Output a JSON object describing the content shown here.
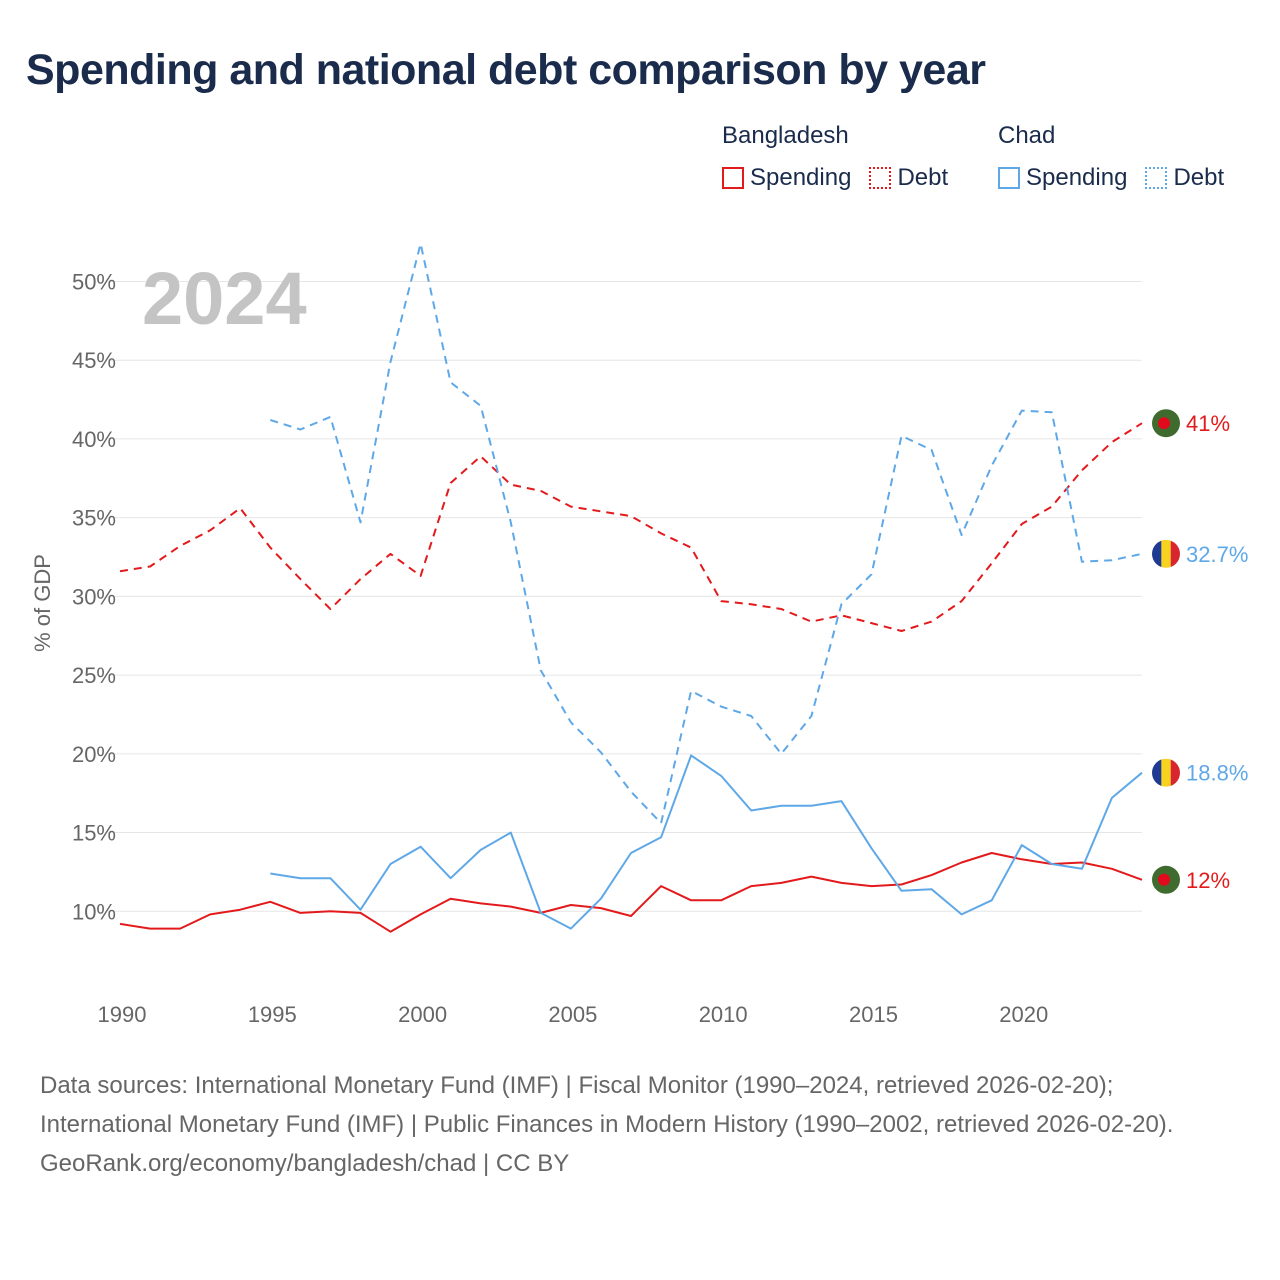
{
  "title": "Spending and national debt comparison by year",
  "legend": {
    "groups": [
      {
        "country": "Bangladesh",
        "color": "#e31a1c",
        "items": [
          {
            "label": "Spending",
            "style": "solid"
          },
          {
            "label": "Debt",
            "style": "dotted"
          }
        ]
      },
      {
        "country": "Chad",
        "color": "#5fa8e8",
        "items": [
          {
            "label": "Spending",
            "style": "solid"
          },
          {
            "label": "Debt",
            "style": "dotted"
          }
        ]
      }
    ]
  },
  "chart_data": {
    "type": "line",
    "year_label": "2024",
    "ylabel": "% of GDP",
    "xlim": [
      1990,
      2024
    ],
    "ylim": [
      5,
      52
    ],
    "x_ticks": [
      "1990",
      "1995",
      "2000",
      "2005",
      "2010",
      "2015",
      "2020"
    ],
    "x_tick_values": [
      1990,
      1995,
      2000,
      2005,
      2010,
      2015,
      2020
    ],
    "y_ticks": [
      "10%",
      "15%",
      "20%",
      "25%",
      "30%",
      "35%",
      "40%",
      "45%",
      "50%"
    ],
    "y_tick_values": [
      10,
      15,
      20,
      25,
      30,
      35,
      40,
      45,
      50
    ],
    "series": [
      {
        "name": "Bangladesh Debt",
        "country": "Bangladesh",
        "kind": "debt",
        "color": "#e31a1c",
        "end_label": "41%",
        "x": [
          1990,
          1991,
          1992,
          1993,
          1994,
          1995,
          1996,
          1997,
          1998,
          1999,
          2000,
          2001,
          2002,
          2003,
          2004,
          2005,
          2006,
          2007,
          2008,
          2009,
          2010,
          2011,
          2012,
          2013,
          2014,
          2015,
          2016,
          2017,
          2018,
          2019,
          2020,
          2021,
          2022,
          2023,
          2024
        ],
        "values": [
          31.6,
          31.9,
          33.2,
          34.2,
          35.6,
          33.1,
          31.1,
          29.2,
          31.1,
          32.7,
          31.3,
          37.2,
          38.9,
          37.1,
          36.7,
          35.7,
          35.4,
          35.1,
          34.0,
          33.1,
          29.7,
          29.5,
          29.2,
          28.4,
          28.8,
          28.3,
          27.8,
          28.4,
          29.7,
          32.1,
          34.6,
          35.7,
          38.0,
          39.8,
          41.0
        ]
      },
      {
        "name": "Chad Debt",
        "country": "Chad",
        "kind": "debt",
        "color": "#5fa8e8",
        "end_label": "32.7%",
        "x": [
          1995,
          1996,
          1997,
          1998,
          1999,
          2000,
          2001,
          2002,
          2003,
          2004,
          2005,
          2006,
          2007,
          2008,
          2009,
          2010,
          2011,
          2012,
          2013,
          2014,
          2015,
          2016,
          2017,
          2018,
          2019,
          2020,
          2021,
          2022,
          2023,
          2024
        ],
        "values": [
          41.2,
          40.6,
          41.4,
          34.7,
          44.9,
          52.4,
          43.6,
          42.1,
          34.7,
          25.3,
          22.0,
          20.1,
          17.6,
          15.6,
          24.0,
          23.0,
          22.4,
          20.0,
          22.4,
          29.5,
          31.4,
          40.2,
          39.3,
          33.9,
          38.3,
          41.8,
          41.7,
          32.2,
          32.3,
          32.7
        ]
      },
      {
        "name": "Bangladesh Spending",
        "country": "Bangladesh",
        "kind": "spending",
        "color": "#e31a1c",
        "end_label": "12%",
        "x": [
          1990,
          1991,
          1992,
          1993,
          1994,
          1995,
          1996,
          1997,
          1998,
          1999,
          2000,
          2001,
          2002,
          2003,
          2004,
          2005,
          2006,
          2007,
          2008,
          2009,
          2010,
          2011,
          2012,
          2013,
          2014,
          2015,
          2016,
          2017,
          2018,
          2019,
          2020,
          2021,
          2022,
          2023,
          2024
        ],
        "values": [
          9.2,
          8.9,
          8.9,
          9.8,
          10.1,
          10.6,
          9.9,
          10.0,
          9.9,
          8.7,
          9.8,
          10.8,
          10.5,
          10.3,
          9.9,
          10.4,
          10.2,
          9.7,
          11.6,
          10.7,
          10.7,
          11.6,
          11.8,
          12.2,
          11.8,
          11.6,
          11.7,
          12.3,
          13.1,
          13.7,
          13.3,
          13.0,
          13.1,
          12.7,
          12.0
        ]
      },
      {
        "name": "Chad Spending",
        "country": "Chad",
        "kind": "spending",
        "color": "#5fa8e8",
        "end_label": "18.8%",
        "x": [
          1995,
          1996,
          1997,
          1998,
          1999,
          2000,
          2001,
          2002,
          2003,
          2004,
          2005,
          2006,
          2007,
          2008,
          2009,
          2010,
          2011,
          2012,
          2013,
          2014,
          2015,
          2016,
          2017,
          2018,
          2019,
          2020,
          2021,
          2022,
          2023,
          2024
        ],
        "values": [
          12.4,
          12.1,
          12.1,
          10.1,
          13.0,
          14.1,
          12.1,
          13.9,
          15.0,
          9.9,
          8.9,
          10.8,
          13.7,
          14.7,
          19.9,
          18.6,
          16.4,
          16.7,
          16.7,
          17.0,
          14.0,
          11.3,
          11.4,
          9.8,
          10.7,
          14.2,
          13.0,
          12.7,
          17.2,
          18.8
        ]
      }
    ]
  },
  "footer": {
    "sources": "Data sources: International Monetary Fund (IMF) | Fiscal Monitor (1990–2024, retrieved 2026-02-20); International Monetary Fund (IMF) | Public Finances in Modern History (1990–2002, retrieved 2026-02-20).",
    "credit": "GeoRank.org/economy/bangladesh/chad | CC BY"
  }
}
